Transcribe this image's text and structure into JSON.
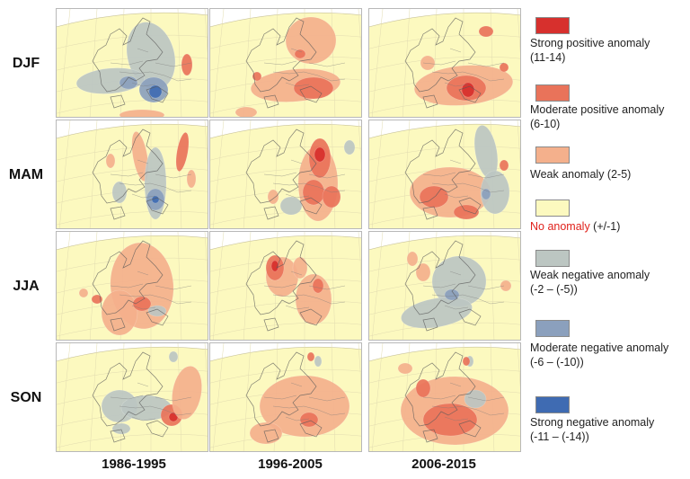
{
  "rows": [
    "DJF",
    "MAM",
    "JJA",
    "SON"
  ],
  "columns": [
    "1986-1995",
    "1996-2005",
    "2006-2015"
  ],
  "colors": {
    "strong_positive": "#d7302d",
    "moderate_positive": "#e9735a",
    "weak_positive": "#f4b08c",
    "no_anomaly": "#fcf9bf",
    "weak_negative": "#bcc6c2",
    "moderate_negative": "#8ba0bd",
    "strong_negative": "#3f6bb2"
  },
  "legend": [
    {
      "key": "strong_positive",
      "label_line1": "Strong positive anomaly",
      "label_line2": "(11-14)"
    },
    {
      "key": "moderate_positive",
      "label_line1": "Moderate positive anomaly",
      "label_line2": "(6-10)"
    },
    {
      "key": "weak_positive",
      "label_line1": "Weak anomaly (2-5)",
      "label_line2": ""
    },
    {
      "key": "no_anomaly",
      "label_red": "No anomaly",
      "label_rest": " (+/-1)"
    },
    {
      "key": "weak_negative",
      "label_line1": "Weak negative anomaly",
      "label_line2": "(-2 – (-5))"
    },
    {
      "key": "moderate_negative",
      "label_line1": "Moderate negative anomaly",
      "label_line2": "(-6 – (-10))"
    },
    {
      "key": "strong_negative",
      "label_line1": "Strong negative anomaly",
      "label_line2": "(-11 – (-14))"
    }
  ]
}
